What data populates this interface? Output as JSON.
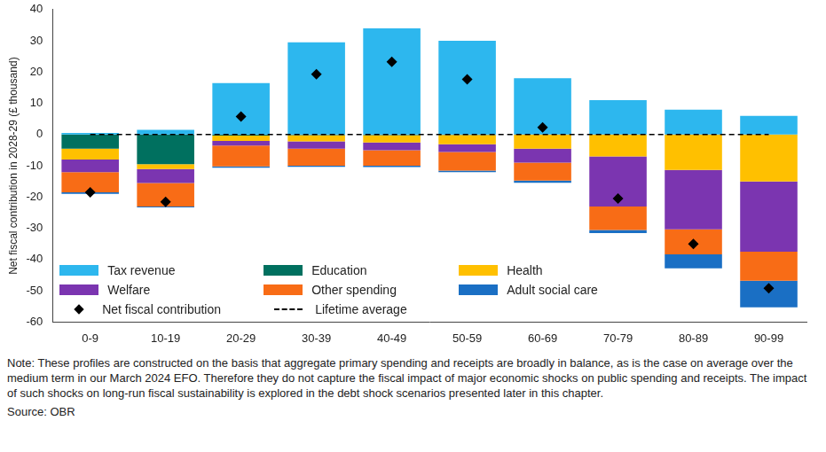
{
  "chart_data": {
    "type": "bar",
    "y_label": "Net fiscal contribution in 2028-29 (£ thousand)",
    "categories": [
      "0-9",
      "10-19",
      "20-29",
      "30-39",
      "40-49",
      "50-59",
      "60-69",
      "70-79",
      "80-89",
      "90-99"
    ],
    "series": [
      {
        "name": "Tax revenue",
        "color": "#2db7ee",
        "values": [
          0.5,
          1.5,
          16.5,
          29.5,
          34,
          30,
          18,
          11,
          8,
          6
        ]
      },
      {
        "name": "Education",
        "color": "#00705f",
        "values": [
          -4.5,
          -9.5,
          -0.3,
          -0.2,
          -0.2,
          -0.1,
          0,
          0,
          0,
          0
        ]
      },
      {
        "name": "Health",
        "color": "#ffc000",
        "values": [
          -3.5,
          -1.5,
          -1.7,
          -2,
          -2.3,
          -3,
          -4.5,
          -7,
          -11.3,
          -15
        ]
      },
      {
        "name": "Welfare",
        "color": "#7b35b0",
        "values": [
          -4,
          -4.5,
          -1.5,
          -2.3,
          -2.5,
          -2.5,
          -4.5,
          -16,
          -19,
          -22.5
        ]
      },
      {
        "name": "Other spending",
        "color": "#f86c16",
        "values": [
          -6.5,
          -7.5,
          -6.7,
          -5.5,
          -5,
          -5.9,
          -5.7,
          -7.5,
          -8,
          -9.3
        ]
      },
      {
        "name": "Adult social care",
        "color": "#1a6fc4",
        "values": [
          -0.5,
          -0.3,
          -0.4,
          -0.3,
          -0.4,
          -0.5,
          -0.7,
          -1,
          -4.5,
          -8.5
        ]
      },
      {
        "name": "Net fiscal contribution",
        "type": "scatter",
        "marker": "diamond",
        "color": "#000000",
        "values": [
          -18.5,
          -21.5,
          5.8,
          19.3,
          23.3,
          17.7,
          2.3,
          -20.5,
          -35,
          -49.2
        ]
      },
      {
        "name": "Lifetime average",
        "type": "line",
        "line_style": "dashed",
        "color": "#000000",
        "values": [
          0,
          0,
          0,
          0,
          0,
          0,
          0,
          0,
          0,
          0
        ]
      }
    ],
    "stacked": true,
    "ylim": [
      -60,
      40
    ],
    "yticks": [
      -60,
      -50,
      -40,
      -30,
      -20,
      -10,
      0,
      10,
      20,
      30,
      40
    ],
    "grid": false,
    "legend": "bottom-left",
    "note": "Note: These profiles are constructed on the basis that aggregate primary spending and receipts are broadly in balance, as is the case on average over the medium term in our March 2024 EFO. Therefore they do not capture the fiscal impact of major economic shocks on public spending and receipts. The impact of such shocks on long-run fiscal sustainability is explored in the debt shock scenarios presented later in this chapter.",
    "source": "Source: OBR"
  }
}
